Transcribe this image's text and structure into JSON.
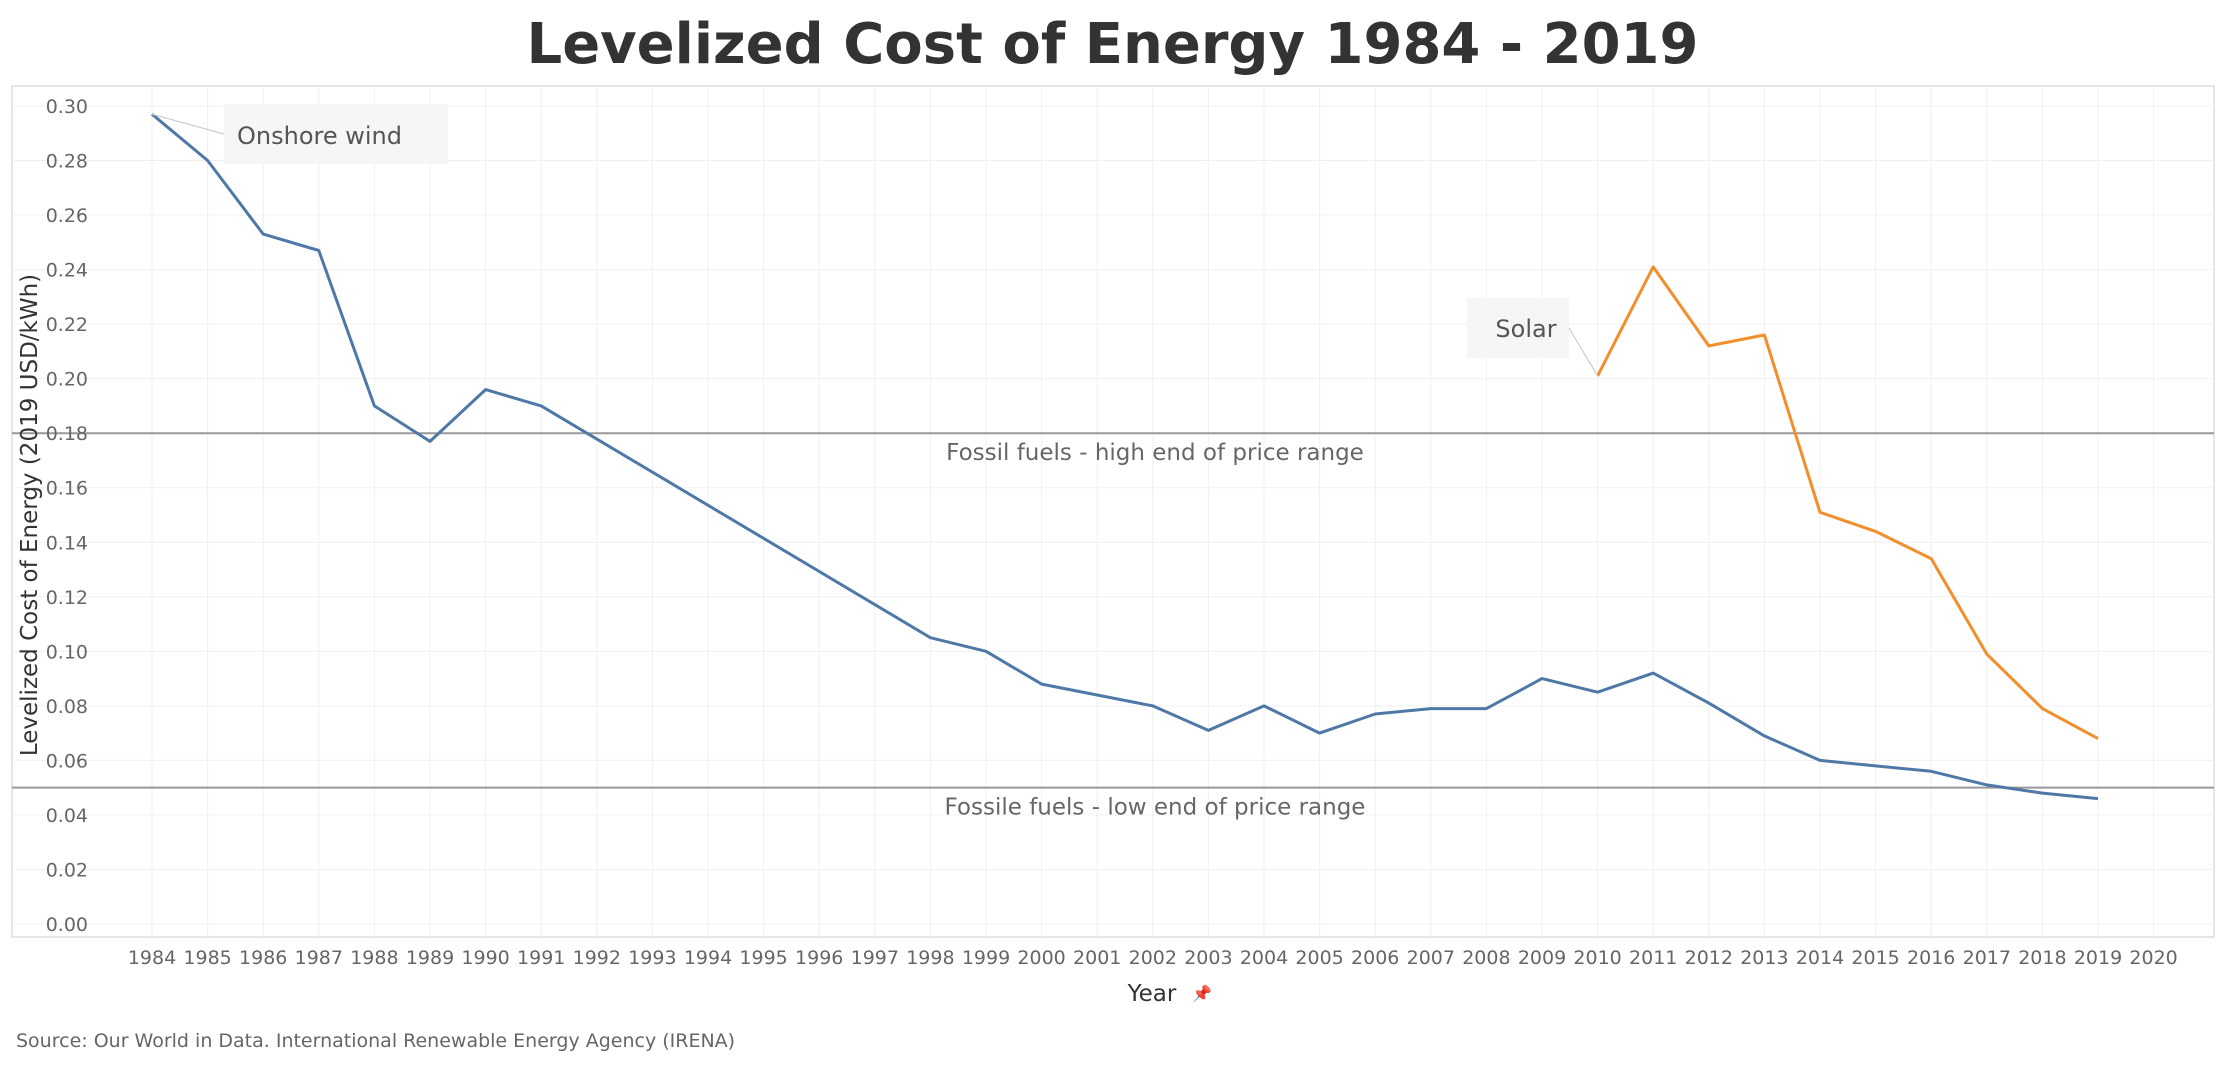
{
  "chart_data": {
    "type": "line",
    "title": "Levelized Cost of Energy 1984 - 2019",
    "xlabel": "Year",
    "ylabel": "Levelized Cost of Energy (2019 USD/kWh)",
    "source": "Source: Our World in Data. International Renewable Energy Agency (IRENA)",
    "xlim": [
      1984,
      2020
    ],
    "ylim": [
      0,
      0.3
    ],
    "x_ticks": [
      "1984",
      "1985",
      "1986",
      "1987",
      "1988",
      "1989",
      "1990",
      "1991",
      "1992",
      "1993",
      "1994",
      "1995",
      "1996",
      "1997",
      "1998",
      "1999",
      "2000",
      "2001",
      "2002",
      "2003",
      "2004",
      "2005",
      "2006",
      "2007",
      "2008",
      "2009",
      "2010",
      "2011",
      "2012",
      "2013",
      "2014",
      "2015",
      "2016",
      "2017",
      "2018",
      "2019",
      "2020"
    ],
    "y_ticks": [
      "0.00",
      "0.02",
      "0.04",
      "0.06",
      "0.08",
      "0.10",
      "0.12",
      "0.14",
      "0.16",
      "0.18",
      "0.20",
      "0.22",
      "0.24",
      "0.26",
      "0.28",
      "0.30"
    ],
    "grid": true,
    "legend": "none",
    "series": [
      {
        "name": "Onshore wind",
        "color": "#4e79a7",
        "x": [
          1984,
          1985,
          1986,
          1987,
          1988,
          1989,
          1990,
          1991,
          1998,
          1999,
          2000,
          2001,
          2002,
          2003,
          2004,
          2005,
          2006,
          2007,
          2008,
          2009,
          2010,
          2011,
          2012,
          2013,
          2014,
          2015,
          2016,
          2017,
          2018,
          2019
        ],
        "values": [
          0.297,
          0.28,
          0.253,
          0.247,
          0.19,
          0.177,
          0.196,
          0.19,
          0.105,
          0.1,
          0.088,
          0.084,
          0.08,
          0.071,
          0.08,
          0.07,
          0.077,
          0.079,
          0.079,
          0.09,
          0.085,
          0.092,
          0.081,
          0.069,
          0.06,
          0.058,
          0.056,
          0.051,
          0.048,
          0.046
        ]
      },
      {
        "name": "Solar",
        "color": "#f28e2b",
        "x": [
          2010,
          2011,
          2012,
          2013,
          2014,
          2015,
          2016,
          2017,
          2018,
          2019
        ],
        "values": [
          0.201,
          0.241,
          0.212,
          0.216,
          0.151,
          0.144,
          0.134,
          0.099,
          0.079,
          0.068
        ]
      }
    ],
    "reference_lines": [
      {
        "value": 0.18,
        "label": "Fossil fuels - high end of price range",
        "color": "#999999"
      },
      {
        "value": 0.05,
        "label": "Fossile fuels - low end of price range",
        "color": "#999999"
      }
    ],
    "annotations": [
      {
        "text": "Onshore wind",
        "x": 1984,
        "y": 0.297
      },
      {
        "text": "Solar",
        "x": 2010,
        "y": 0.201
      }
    ]
  }
}
